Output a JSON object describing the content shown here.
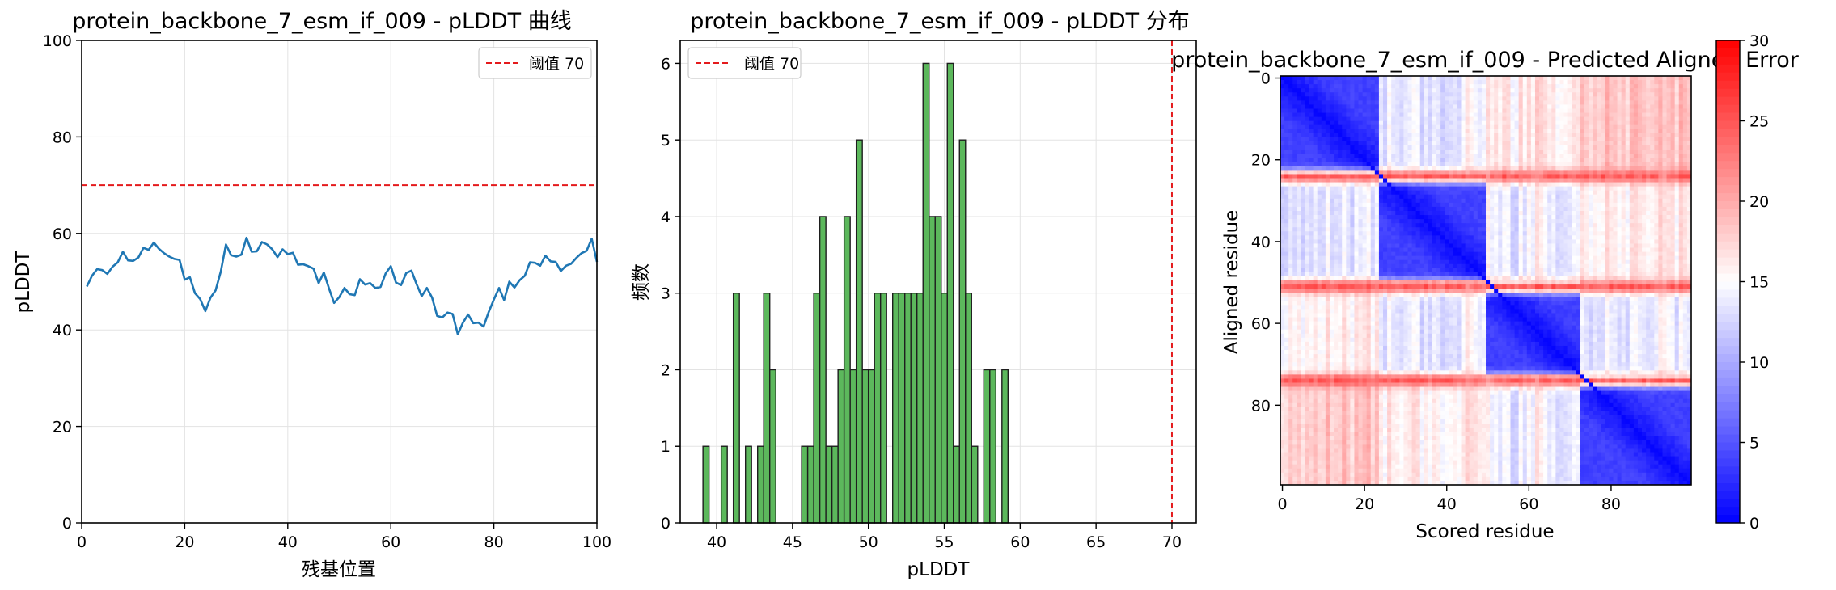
{
  "chart_data": [
    {
      "type": "line",
      "title": "protein_backbone_7_esm_if_009 - pLDDT 曲线",
      "xlabel": "残基位置",
      "ylabel": "pLDDT",
      "xlim": [
        0,
        100
      ],
      "ylim": [
        0,
        100
      ],
      "xticks": [
        0,
        20,
        40,
        60,
        80,
        100
      ],
      "yticks": [
        0,
        20,
        40,
        60,
        80,
        100
      ],
      "grid": true,
      "legend": {
        "placement": "top-right",
        "entries": [
          "阈值 70"
        ]
      },
      "threshold": {
        "y": 70,
        "label": "阈值 70",
        "color": "#e41a1c",
        "style": "dashed"
      },
      "series": [
        {
          "color": "#1f77b4",
          "x": [
            1,
            2,
            3,
            4,
            5,
            6,
            7,
            8,
            9,
            10,
            11,
            12,
            13,
            14,
            15,
            16,
            17,
            18,
            19,
            20,
            21,
            22,
            23,
            24,
            25,
            26,
            27,
            28,
            29,
            30,
            31,
            32,
            33,
            34,
            35,
            36,
            37,
            38,
            39,
            40,
            41,
            42,
            43,
            44,
            45,
            46,
            47,
            48,
            49,
            50,
            51,
            52,
            53,
            54,
            55,
            56,
            57,
            58,
            59,
            60,
            61,
            62,
            63,
            64,
            65,
            66,
            67,
            68,
            69,
            70,
            71,
            72,
            73,
            74,
            75,
            76,
            77,
            78,
            79,
            80,
            81,
            82,
            83,
            84,
            85,
            86,
            87,
            88,
            89,
            90,
            91,
            92,
            93,
            94,
            95,
            96,
            97,
            98,
            99,
            100
          ],
          "y": [
            49.0,
            51.2,
            52.6,
            52.4,
            51.6,
            53.1,
            54.0,
            56.2,
            54.4,
            54.3,
            55.0,
            57.0,
            56.6,
            58.1,
            56.8,
            55.9,
            55.2,
            54.7,
            54.5,
            50.4,
            50.9,
            47.6,
            46.4,
            43.9,
            46.7,
            48.2,
            52.1,
            57.7,
            55.5,
            55.2,
            55.6,
            59.1,
            56.2,
            56.3,
            58.2,
            57.7,
            56.7,
            55.1,
            56.7,
            55.7,
            56.0,
            53.5,
            53.6,
            53.2,
            52.7,
            49.7,
            51.9,
            48.6,
            45.6,
            46.8,
            48.7,
            47.4,
            47.2,
            50.5,
            49.4,
            49.7,
            48.7,
            48.9,
            51.7,
            53.2,
            49.8,
            49.3,
            51.8,
            52.3,
            49.5,
            47.0,
            48.7,
            46.7,
            42.9,
            42.6,
            43.6,
            43.3,
            39.1,
            41.5,
            43.2,
            41.4,
            41.5,
            40.7,
            43.7,
            46.3,
            48.7,
            46.2,
            50.0,
            48.8,
            50.3,
            51.2,
            54.0,
            53.9,
            53.3,
            55.4,
            54.2,
            54.1,
            52.2,
            53.3,
            53.7,
            54.9,
            55.9,
            56.4,
            58.9,
            54.1
          ]
        }
      ]
    },
    {
      "type": "bar",
      "title": "protein_backbone_7_esm_if_009 - pLDDT 分布",
      "xlabel": "pLDDT",
      "ylabel": "频数",
      "xlim": [
        37.6,
        71.6
      ],
      "ylim": [
        0,
        6.3
      ],
      "xticks": [
        40,
        45,
        50,
        55,
        60,
        65,
        70
      ],
      "yticks": [
        0,
        1,
        2,
        3,
        4,
        5,
        6
      ],
      "grid": true,
      "legend": {
        "placement": "top-left",
        "entries": [
          "阈值 70"
        ]
      },
      "threshold": {
        "x": 70,
        "label": "阈值 70",
        "color": "#e41a1c",
        "style": "dashed"
      },
      "bar_color": "#5cb85c",
      "bin_width": 0.4,
      "bins": [
        {
          "x": 39.3,
          "count": 1
        },
        {
          "x": 40.5,
          "count": 1
        },
        {
          "x": 41.3,
          "count": 3
        },
        {
          "x": 42.1,
          "count": 1
        },
        {
          "x": 42.9,
          "count": 1
        },
        {
          "x": 43.3,
          "count": 3
        },
        {
          "x": 43.7,
          "count": 2
        },
        {
          "x": 45.8,
          "count": 1
        },
        {
          "x": 46.2,
          "count": 1
        },
        {
          "x": 46.6,
          "count": 3
        },
        {
          "x": 47.0,
          "count": 4
        },
        {
          "x": 47.4,
          "count": 1
        },
        {
          "x": 47.8,
          "count": 1
        },
        {
          "x": 48.2,
          "count": 2
        },
        {
          "x": 48.6,
          "count": 4
        },
        {
          "x": 49.0,
          "count": 2
        },
        {
          "x": 49.4,
          "count": 5
        },
        {
          "x": 49.8,
          "count": 2
        },
        {
          "x": 50.2,
          "count": 2
        },
        {
          "x": 50.6,
          "count": 3
        },
        {
          "x": 51.0,
          "count": 3
        },
        {
          "x": 51.8,
          "count": 3
        },
        {
          "x": 52.2,
          "count": 3
        },
        {
          "x": 52.6,
          "count": 3
        },
        {
          "x": 53.0,
          "count": 3
        },
        {
          "x": 53.4,
          "count": 3
        },
        {
          "x": 53.8,
          "count": 6
        },
        {
          "x": 54.2,
          "count": 4
        },
        {
          "x": 54.6,
          "count": 4
        },
        {
          "x": 55.0,
          "count": 3
        },
        {
          "x": 55.4,
          "count": 6
        },
        {
          "x": 55.8,
          "count": 1
        },
        {
          "x": 56.2,
          "count": 5
        },
        {
          "x": 56.6,
          "count": 3
        },
        {
          "x": 57.0,
          "count": 1
        },
        {
          "x": 57.8,
          "count": 2
        },
        {
          "x": 58.2,
          "count": 2
        },
        {
          "x": 59.0,
          "count": 2
        }
      ]
    },
    {
      "type": "heatmap",
      "title": "protein_backbone_7_esm_if_009 - Predicted Aligned Error",
      "xlabel": "Scored residue",
      "ylabel": "Aligned residue",
      "size": 100,
      "xticks": [
        0,
        20,
        40,
        60,
        80
      ],
      "yticks": [
        0,
        20,
        40,
        60,
        80
      ],
      "colormap": "bwr",
      "colorbar": {
        "range": [
          0,
          30
        ],
        "ticks": [
          0,
          5,
          10,
          15,
          20,
          25,
          30
        ]
      },
      "domains": [
        [
          0,
          23
        ],
        [
          24,
          49
        ],
        [
          50,
          72
        ],
        [
          73,
          99
        ]
      ],
      "high_error_rows": [
        24,
        51,
        74
      ],
      "high_error_columns": [
        45,
        50,
        62,
        93
      ]
    }
  ]
}
